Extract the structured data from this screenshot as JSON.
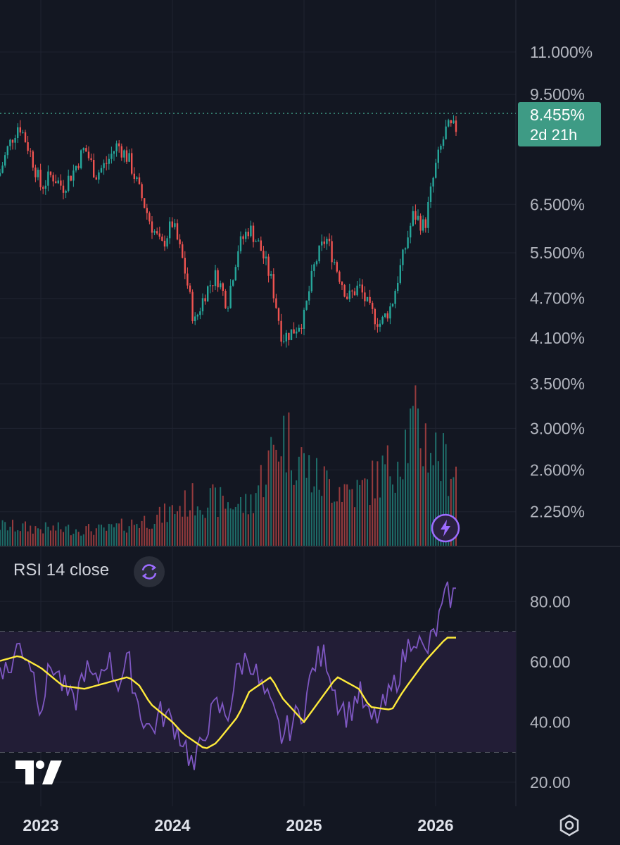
{
  "chart_data": [
    {
      "type": "candlestick",
      "title": "",
      "scale": "log",
      "y_axis_labels": [
        "11.000%",
        "9.500%",
        "6.500%",
        "5.500%",
        "4.700%",
        "4.100%",
        "3.500%",
        "3.000%",
        "2.600%",
        "2.250%"
      ],
      "x_axis_labels": [
        "2023",
        "2024",
        "2025",
        "2026"
      ],
      "last_price": "8.455%",
      "countdown": "2d 21h",
      "colors": {
        "up": "#26a69a",
        "down": "#ef5350",
        "background": "#131722",
        "badge": "#3e9b85"
      },
      "close_path": [
        [
          "2022-09",
          7.0
        ],
        [
          "2022-10",
          7.9
        ],
        [
          "2022-11",
          8.6
        ],
        [
          "2022-12",
          7.8
        ],
        [
          "2023-01",
          6.9
        ],
        [
          "2023-02",
          7.2
        ],
        [
          "2023-03",
          6.9
        ],
        [
          "2023-04",
          7.3
        ],
        [
          "2023-05",
          7.9
        ],
        [
          "2023-06",
          7.2
        ],
        [
          "2023-07",
          7.5
        ],
        [
          "2023-08",
          8.0
        ],
        [
          "2023-09",
          7.6
        ],
        [
          "2023-10",
          6.8
        ],
        [
          "2023-11",
          6.1
        ],
        [
          "2023-12",
          5.6
        ],
        [
          "2024-01",
          6.1
        ],
        [
          "2024-02",
          5.3
        ],
        [
          "2024-03",
          4.3
        ],
        [
          "2024-04",
          4.8
        ],
        [
          "2024-05",
          5.1
        ],
        [
          "2024-06",
          4.6
        ],
        [
          "2024-07",
          5.6
        ],
        [
          "2024-08",
          6.0
        ],
        [
          "2024-09",
          5.6
        ],
        [
          "2024-10",
          5.0
        ],
        [
          "2024-11",
          4.1
        ],
        [
          "2024-12",
          4.2
        ],
        [
          "2025-01",
          4.4
        ],
        [
          "2025-02",
          5.3
        ],
        [
          "2025-03",
          5.8
        ],
        [
          "2025-04",
          5.2
        ],
        [
          "2025-05",
          4.7
        ],
        [
          "2025-06",
          4.9
        ],
        [
          "2025-07",
          4.5
        ],
        [
          "2025-08",
          4.3
        ],
        [
          "2025-09",
          4.6
        ],
        [
          "2025-10",
          5.4
        ],
        [
          "2025-11",
          6.3
        ],
        [
          "2025-12",
          6.0
        ],
        [
          "2026-01",
          7.4
        ],
        [
          "2026-02",
          8.455
        ]
      ],
      "volume_level_path": [
        [
          "2022-09",
          0.15
        ],
        [
          "2023-01",
          0.13
        ],
        [
          "2023-07",
          0.12
        ],
        [
          "2023-12",
          0.22
        ],
        [
          "2024-03",
          0.35
        ],
        [
          "2024-08",
          0.3
        ],
        [
          "2024-11",
          0.85
        ],
        [
          "2025-02",
          0.5
        ],
        [
          "2025-06",
          0.4
        ],
        [
          "2025-09",
          0.6
        ],
        [
          "2025-11",
          0.9
        ],
        [
          "2026-02",
          0.6
        ]
      ]
    },
    {
      "type": "line",
      "title": "RSI 14 close",
      "y_axis_labels": [
        "80.00",
        "60.00",
        "40.00",
        "20.00"
      ],
      "band": [
        30,
        70
      ],
      "midline": 50,
      "series": [
        {
          "color": "#7e57c2",
          "values": [
            [
              "2022-09",
              62
            ],
            [
              "2022-10",
              56
            ],
            [
              "2022-11",
              66
            ],
            [
              "2022-12",
              61
            ],
            [
              "2023-01",
              45
            ],
            [
              "2023-02",
              60
            ],
            [
              "2023-03",
              52
            ],
            [
              "2023-04",
              45
            ],
            [
              "2023-05",
              58
            ],
            [
              "2023-06",
              52
            ],
            [
              "2023-07",
              62
            ],
            [
              "2023-08",
              53
            ],
            [
              "2023-09",
              60
            ],
            [
              "2023-10",
              44
            ],
            [
              "2023-11",
              37
            ],
            [
              "2023-12",
              43
            ],
            [
              "2024-01",
              40
            ],
            [
              "2024-02",
              34
            ],
            [
              "2024-03",
              24
            ],
            [
              "2024-04",
              38
            ],
            [
              "2024-05",
              45
            ],
            [
              "2024-06",
              42
            ],
            [
              "2024-07",
              58
            ],
            [
              "2024-08",
              62
            ],
            [
              "2024-09",
              52
            ],
            [
              "2024-10",
              44
            ],
            [
              "2024-11",
              35
            ],
            [
              "2024-12",
              40
            ],
            [
              "2025-01",
              45
            ],
            [
              "2025-02",
              60
            ],
            [
              "2025-03",
              62
            ],
            [
              "2025-04",
              48
            ],
            [
              "2025-05",
              42
            ],
            [
              "2025-06",
              50
            ],
            [
              "2025-07",
              40
            ],
            [
              "2025-08",
              43
            ],
            [
              "2025-09",
              50
            ],
            [
              "2025-10",
              60
            ],
            [
              "2025-11",
              70
            ],
            [
              "2025-12",
              62
            ],
            [
              "2026-01",
              70
            ],
            [
              "2026-02",
              82
            ]
          ]
        },
        {
          "color": "#ffeb3b",
          "values": [
            [
              "2022-09",
              60
            ],
            [
              "2022-11",
              62
            ],
            [
              "2023-01",
              58
            ],
            [
              "2023-03",
              52
            ],
            [
              "2023-05",
              51
            ],
            [
              "2023-07",
              53
            ],
            [
              "2023-09",
              55
            ],
            [
              "2023-10",
              52
            ],
            [
              "2023-11",
              46
            ],
            [
              "2024-01",
              40
            ],
            [
              "2024-02",
              36
            ],
            [
              "2024-04",
              31
            ],
            [
              "2024-05",
              33
            ],
            [
              "2024-07",
              42
            ],
            [
              "2024-08",
              50
            ],
            [
              "2024-10",
              55
            ],
            [
              "2024-11",
              48
            ],
            [
              "2025-01",
              40
            ],
            [
              "2025-03",
              50
            ],
            [
              "2025-04",
              55
            ],
            [
              "2025-06",
              51
            ],
            [
              "2025-07",
              45
            ],
            [
              "2025-09",
              44
            ],
            [
              "2025-10",
              50
            ],
            [
              "2025-12",
              60
            ],
            [
              "2026-02",
              68
            ]
          ]
        }
      ]
    }
  ]
}
